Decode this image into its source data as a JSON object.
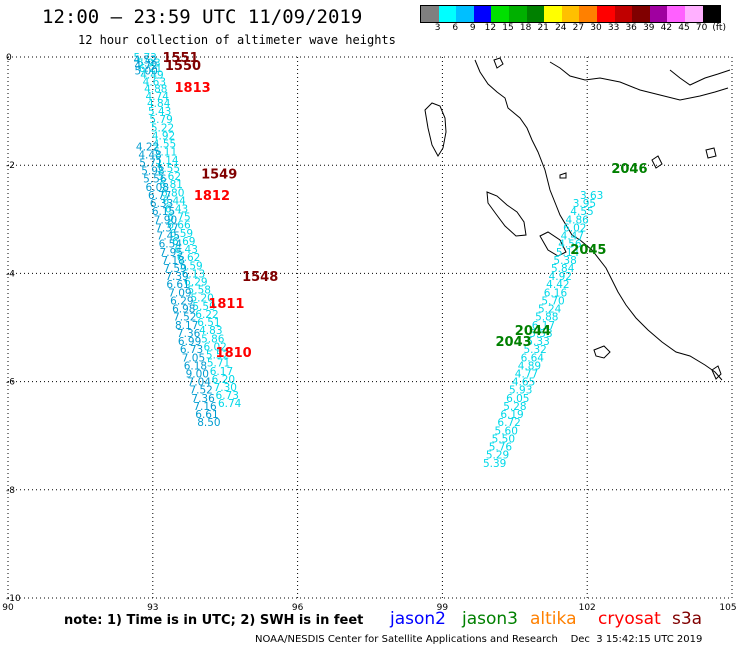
{
  "header": {
    "title": "12:00 – 23:59 UTC 11/09/2019",
    "subtitle": "12 hour collection of altimeter wave heights"
  },
  "legend": {
    "colors": [
      "#7f7f7f",
      "#00ffff",
      "#00bfff",
      "#0000ff",
      "#00e000",
      "#00b000",
      "#008000",
      "#ffff00",
      "#ffc000",
      "#ff8000",
      "#ff0000",
      "#c00000",
      "#800000",
      "#a000a0",
      "#ff60ff",
      "#ffb0ff",
      "#000000"
    ],
    "labels": [
      "3",
      "6",
      "9",
      "12",
      "15",
      "18",
      "21",
      "24",
      "27",
      "30",
      "33",
      "36",
      "39",
      "42",
      "45",
      "70",
      "(ft)"
    ]
  },
  "axes": {
    "lon_ticks": [
      "90",
      "93",
      "96",
      "99",
      "102",
      "105"
    ],
    "lat_ticks": [
      "0",
      "-2",
      "-4",
      "-6",
      "-8",
      "-10"
    ],
    "lon_range": [
      90,
      105
    ],
    "lat_range": [
      -10,
      0
    ]
  },
  "tracks": [
    {
      "satellite": "s3a",
      "color": "#00d8e8",
      "points": [
        {
          "lon": 92.6,
          "lat": 0.0,
          "v": "5.73"
        },
        {
          "lon": 92.68,
          "lat": -0.1,
          "v": "5.93"
        },
        {
          "lon": 92.71,
          "lat": -0.2,
          "v": "6.21"
        },
        {
          "lon": 92.74,
          "lat": -0.32,
          "v": "4.49"
        },
        {
          "lon": 92.79,
          "lat": -0.45,
          "v": "4.63"
        },
        {
          "lon": 92.82,
          "lat": -0.58,
          "v": "4.88"
        },
        {
          "lon": 92.85,
          "lat": -0.72,
          "v": "4.74"
        },
        {
          "lon": 92.88,
          "lat": -0.85,
          "v": "4.84"
        },
        {
          "lon": 92.9,
          "lat": -1.0,
          "v": "5.43"
        },
        {
          "lon": 92.93,
          "lat": -1.15,
          "v": "5.79"
        },
        {
          "lon": 92.96,
          "lat": -1.3,
          "v": "5.22"
        },
        {
          "lon": 92.98,
          "lat": -1.45,
          "v": "4.92"
        },
        {
          "lon": 93.0,
          "lat": -1.6,
          "v": "4.55"
        },
        {
          "lon": 93.02,
          "lat": -1.75,
          "v": "5.11"
        },
        {
          "lon": 93.05,
          "lat": -1.9,
          "v": "5.14"
        },
        {
          "lon": 93.08,
          "lat": -2.05,
          "v": "5.55"
        },
        {
          "lon": 93.1,
          "lat": -2.2,
          "v": "5.62"
        },
        {
          "lon": 93.14,
          "lat": -2.35,
          "v": "6.81"
        },
        {
          "lon": 93.17,
          "lat": -2.5,
          "v": "6.80"
        },
        {
          "lon": 93.2,
          "lat": -2.65,
          "v": "6.44"
        },
        {
          "lon": 93.25,
          "lat": -2.8,
          "v": "6.43"
        },
        {
          "lon": 93.3,
          "lat": -2.95,
          "v": "6.75"
        },
        {
          "lon": 93.3,
          "lat": -3.1,
          "v": "6.66"
        },
        {
          "lon": 93.35,
          "lat": -3.25,
          "v": "6.59"
        },
        {
          "lon": 93.4,
          "lat": -3.4,
          "v": "6.69"
        },
        {
          "lon": 93.45,
          "lat": -3.55,
          "v": "6.43"
        },
        {
          "lon": 93.5,
          "lat": -3.7,
          "v": "6.62"
        },
        {
          "lon": 93.55,
          "lat": -3.85,
          "v": "5.59"
        },
        {
          "lon": 93.6,
          "lat": -4.0,
          "v": "6.13"
        },
        {
          "lon": 93.65,
          "lat": -4.15,
          "v": "6.29"
        },
        {
          "lon": 93.72,
          "lat": -4.3,
          "v": "5.58"
        },
        {
          "lon": 93.78,
          "lat": -4.45,
          "v": "5.20"
        },
        {
          "lon": 93.82,
          "lat": -4.6,
          "v": "5.59"
        },
        {
          "lon": 93.88,
          "lat": -4.75,
          "v": "6.22"
        },
        {
          "lon": 93.92,
          "lat": -4.9,
          "v": "6.51"
        },
        {
          "lon": 93.96,
          "lat": -5.05,
          "v": "4.83"
        },
        {
          "lon": 94.0,
          "lat": -5.2,
          "v": "5.86"
        },
        {
          "lon": 94.05,
          "lat": -5.35,
          "v": "6.02"
        },
        {
          "lon": 94.1,
          "lat": -5.5,
          "v": "5.52"
        },
        {
          "lon": 94.12,
          "lat": -5.65,
          "v": "5.71"
        },
        {
          "lon": 94.18,
          "lat": -5.8,
          "v": "6.17"
        },
        {
          "lon": 94.22,
          "lat": -5.95,
          "v": "6.20"
        },
        {
          "lon": 94.26,
          "lat": -6.1,
          "v": "7.30"
        },
        {
          "lon": 94.3,
          "lat": -6.25,
          "v": "6.73"
        },
        {
          "lon": 94.35,
          "lat": -6.4,
          "v": "6.74"
        }
      ]
    },
    {
      "satellite": "cryosat",
      "color": "#009cd0",
      "points": [
        {
          "lon": 92.6,
          "lat": -0.05,
          "v": "4.52"
        },
        {
          "lon": 92.62,
          "lat": -0.15,
          "v": "4.72"
        },
        {
          "lon": 92.62,
          "lat": -0.25,
          "v": "5.00"
        },
        {
          "lon": 92.65,
          "lat": -1.65,
          "v": "4.22"
        },
        {
          "lon": 92.7,
          "lat": -1.8,
          "v": "4.48"
        },
        {
          "lon": 92.72,
          "lat": -1.95,
          "v": "5.71"
        },
        {
          "lon": 92.76,
          "lat": -2.1,
          "v": "5.98"
        },
        {
          "lon": 92.8,
          "lat": -2.25,
          "v": "5.56"
        },
        {
          "lon": 92.85,
          "lat": -2.4,
          "v": "6.08"
        },
        {
          "lon": 92.9,
          "lat": -2.55,
          "v": "6.77"
        },
        {
          "lon": 92.94,
          "lat": -2.7,
          "v": "6.33"
        },
        {
          "lon": 92.98,
          "lat": -2.85,
          "v": "6.15"
        },
        {
          "lon": 93.02,
          "lat": -3.0,
          "v": "7.90"
        },
        {
          "lon": 93.05,
          "lat": -3.15,
          "v": "7.37"
        },
        {
          "lon": 93.08,
          "lat": -3.3,
          "v": "7.45"
        },
        {
          "lon": 93.12,
          "lat": -3.45,
          "v": "6.54"
        },
        {
          "lon": 93.14,
          "lat": -3.6,
          "v": "7.95"
        },
        {
          "lon": 93.18,
          "lat": -3.75,
          "v": "7.18"
        },
        {
          "lon": 93.22,
          "lat": -3.9,
          "v": "7.59"
        },
        {
          "lon": 93.26,
          "lat": -4.05,
          "v": "7.39"
        },
        {
          "lon": 93.28,
          "lat": -4.2,
          "v": "6.61"
        },
        {
          "lon": 93.32,
          "lat": -4.35,
          "v": "7.09"
        },
        {
          "lon": 93.36,
          "lat": -4.5,
          "v": "6.29"
        },
        {
          "lon": 93.4,
          "lat": -4.65,
          "v": "6.98"
        },
        {
          "lon": 93.42,
          "lat": -4.8,
          "v": "7.52"
        },
        {
          "lon": 93.46,
          "lat": -4.95,
          "v": "8.17"
        },
        {
          "lon": 93.5,
          "lat": -5.1,
          "v": "7.36"
        },
        {
          "lon": 93.52,
          "lat": -5.25,
          "v": "6.99"
        },
        {
          "lon": 93.56,
          "lat": -5.4,
          "v": "6.73"
        },
        {
          "lon": 93.6,
          "lat": -5.55,
          "v": "7.05"
        },
        {
          "lon": 93.64,
          "lat": -5.7,
          "v": "6.18"
        },
        {
          "lon": 93.68,
          "lat": -5.85,
          "v": "9.00"
        },
        {
          "lon": 93.72,
          "lat": -6.0,
          "v": "7.04"
        },
        {
          "lon": 93.76,
          "lat": -6.15,
          "v": "7.52"
        },
        {
          "lon": 93.8,
          "lat": -6.3,
          "v": "7.36"
        },
        {
          "lon": 93.84,
          "lat": -6.45,
          "v": "7.16"
        },
        {
          "lon": 93.88,
          "lat": -6.6,
          "v": "6.61"
        },
        {
          "lon": 93.92,
          "lat": -6.75,
          "v": "8.50"
        }
      ]
    },
    {
      "satellite": "jason3",
      "color": "#00d8e8",
      "points": [
        {
          "lon": 101.85,
          "lat": -2.55,
          "v": "3.63"
        },
        {
          "lon": 101.7,
          "lat": -2.7,
          "v": "3.95"
        },
        {
          "lon": 101.65,
          "lat": -2.85,
          "v": "4.55"
        },
        {
          "lon": 101.55,
          "lat": -3.0,
          "v": "4.86"
        },
        {
          "lon": 101.5,
          "lat": -3.15,
          "v": "6.02"
        },
        {
          "lon": 101.45,
          "lat": -3.3,
          "v": "4.47"
        },
        {
          "lon": 101.4,
          "lat": -3.45,
          "v": "4.56"
        },
        {
          "lon": 101.35,
          "lat": -3.6,
          "v": "5.14"
        },
        {
          "lon": 101.3,
          "lat": -3.75,
          "v": "5.38"
        },
        {
          "lon": 101.25,
          "lat": -3.9,
          "v": "5.84"
        },
        {
          "lon": 101.2,
          "lat": -4.05,
          "v": "4.92"
        },
        {
          "lon": 101.15,
          "lat": -4.2,
          "v": "4.42"
        },
        {
          "lon": 101.1,
          "lat": -4.35,
          "v": "6.16"
        },
        {
          "lon": 101.05,
          "lat": -4.5,
          "v": "5.70"
        },
        {
          "lon": 100.98,
          "lat": -4.65,
          "v": "5.24"
        },
        {
          "lon": 100.92,
          "lat": -4.8,
          "v": "5.88"
        },
        {
          "lon": 100.85,
          "lat": -4.95,
          "v": "6.17"
        },
        {
          "lon": 100.8,
          "lat": -5.1,
          "v": "5.53"
        },
        {
          "lon": 100.74,
          "lat": -5.25,
          "v": "5.33"
        },
        {
          "lon": 100.68,
          "lat": -5.4,
          "v": "5.32"
        },
        {
          "lon": 100.62,
          "lat": -5.55,
          "v": "6.64"
        },
        {
          "lon": 100.56,
          "lat": -5.7,
          "v": "4.89"
        },
        {
          "lon": 100.5,
          "lat": -5.85,
          "v": "4.77"
        },
        {
          "lon": 100.44,
          "lat": -6.0,
          "v": "4.65"
        },
        {
          "lon": 100.38,
          "lat": -6.15,
          "v": "5.93"
        },
        {
          "lon": 100.32,
          "lat": -6.3,
          "v": "6.05"
        },
        {
          "lon": 100.26,
          "lat": -6.45,
          "v": "5.28"
        },
        {
          "lon": 100.2,
          "lat": -6.6,
          "v": "6.19"
        },
        {
          "lon": 100.14,
          "lat": -6.75,
          "v": "6.72"
        },
        {
          "lon": 100.08,
          "lat": -6.9,
          "v": "5.60"
        },
        {
          "lon": 100.02,
          "lat": -7.05,
          "v": "5.50"
        },
        {
          "lon": 99.96,
          "lat": -7.2,
          "v": "5.76"
        },
        {
          "lon": 99.9,
          "lat": -7.35,
          "v": "5.29"
        },
        {
          "lon": 99.84,
          "lat": -7.5,
          "v": "5.39"
        }
      ]
    }
  ],
  "time_labels": [
    {
      "t": "1551",
      "lon": 93.2,
      "lat": 0.0,
      "color": "#800000"
    },
    {
      "t": "1550",
      "lon": 93.25,
      "lat": -0.15,
      "color": "#800000"
    },
    {
      "t": "1813",
      "lon": 93.45,
      "lat": -0.55,
      "color": "#ff0000"
    },
    {
      "t": "1549",
      "lon": 94.0,
      "lat": -2.15,
      "color": "#800000"
    },
    {
      "t": "1812",
      "lon": 93.85,
      "lat": -2.55,
      "color": "#ff0000"
    },
    {
      "t": "1548",
      "lon": 94.85,
      "lat": -4.05,
      "color": "#800000"
    },
    {
      "t": "1811",
      "lon": 94.15,
      "lat": -4.55,
      "color": "#ff0000"
    },
    {
      "t": "1810",
      "lon": 94.3,
      "lat": -5.45,
      "color": "#ff0000"
    },
    {
      "t": "2046",
      "lon": 102.5,
      "lat": -2.05,
      "color": "#008000"
    },
    {
      "t": "2045",
      "lon": 101.65,
      "lat": -3.55,
      "color": "#008000"
    },
    {
      "t": "2044",
      "lon": 100.5,
      "lat": -5.05,
      "color": "#008000"
    },
    {
      "t": "2043",
      "lon": 100.1,
      "lat": -5.25,
      "color": "#008000"
    }
  ],
  "footer": {
    "note": "note:  1) Time is in UTC;  2) SWH is in feet",
    "satellites": [
      {
        "name": "jason2",
        "color": "#0000ff"
      },
      {
        "name": "jason3",
        "color": "#008000"
      },
      {
        "name": "altika",
        "color": "#ff8000"
      },
      {
        "name": "cryosat",
        "color": "#ff0000"
      },
      {
        "name": "s3a",
        "color": "#800000"
      }
    ],
    "credit": "NOAA/NESDIS Center for Satellite Applications and Research    Dec  3 15:42:15 UTC 2019"
  }
}
